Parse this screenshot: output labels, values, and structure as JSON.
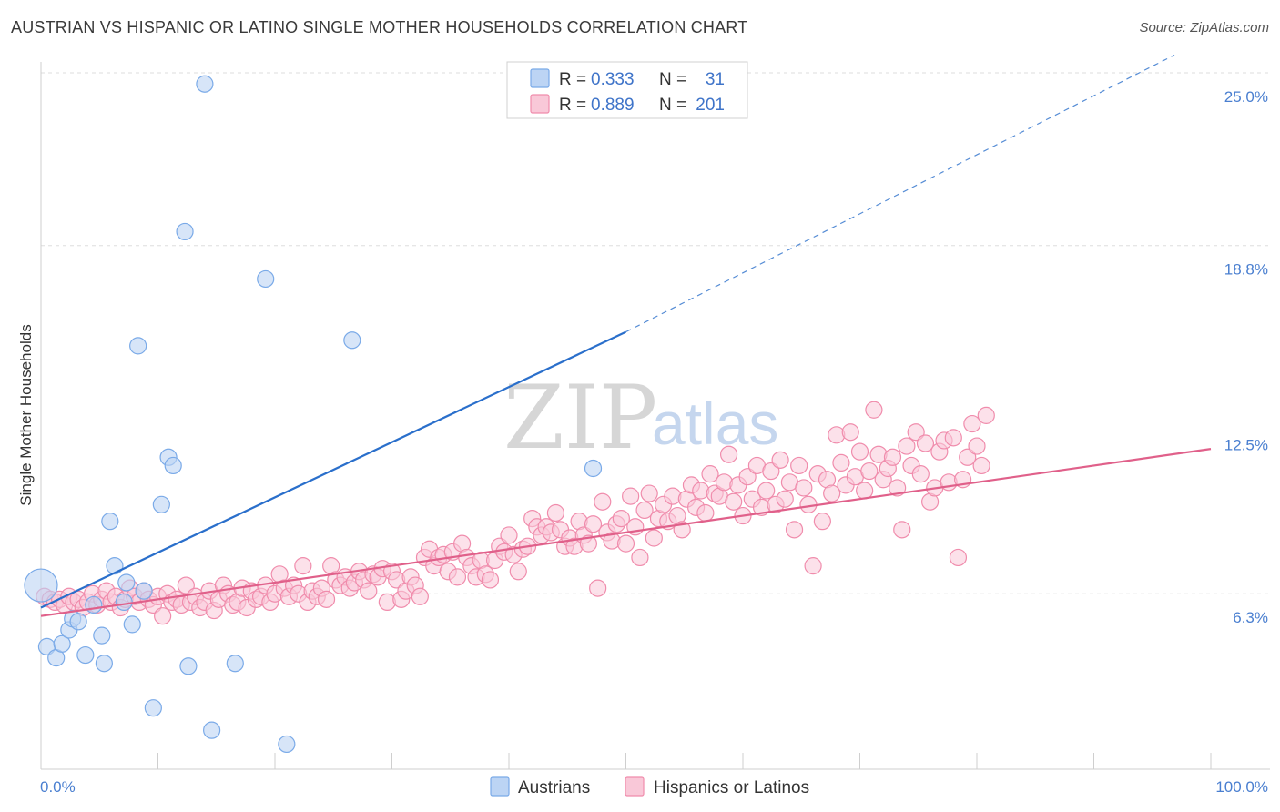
{
  "title": "AUSTRIAN VS HISPANIC OR LATINO SINGLE MOTHER HOUSEHOLDS CORRELATION CHART",
  "source": "Source: ZipAtlas.com",
  "colors": {
    "austrians": "#7aaae8",
    "austrians_fill": "#bcd4f4",
    "austrians_line": "#2a6fcb",
    "hispanics": "#f08cac",
    "hispanics_fill": "#f9c8d8",
    "hispanics_line": "#e0608a",
    "tick_blue": "#4a7fd0",
    "grid": "#dddddd"
  },
  "legend": {
    "rows": [
      {
        "r_label": "R =",
        "r_value": "0.333",
        "n_label": "N =",
        "n_value": "31"
      },
      {
        "r_label": "R =",
        "r_value": "0.889",
        "n_label": "N =",
        "n_value": "201"
      }
    ]
  },
  "bottom_legend": [
    "Austrians",
    "Hispanics or Latinos"
  ],
  "watermark": {
    "zip": "ZIP",
    "atlas": "atlas"
  },
  "chart_data": {
    "type": "scatter",
    "xlabel": "",
    "ylabel": "Single Mother Households",
    "xlim": [
      0,
      100
    ],
    "ylim": [
      0.0,
      25.0
    ],
    "x_tick_labels": [
      "0.0%",
      "100.0%"
    ],
    "y_ticks": [
      6.3,
      12.5,
      18.8,
      25.0
    ],
    "y_tick_labels": [
      "6.3%",
      "12.5%",
      "18.8%",
      "25.0%"
    ],
    "grid": true,
    "series": [
      {
        "name": "Austrians",
        "trend": {
          "x0": 0,
          "y0": 5.8,
          "x1": 50,
          "y1": 15.7,
          "dashed_to_x": 100,
          "dashed_to_y": 25.8
        },
        "points": [
          [
            0,
            6.6
          ],
          [
            0.5,
            4.4
          ],
          [
            1.3,
            4.0
          ],
          [
            1.8,
            4.5
          ],
          [
            2.4,
            5.0
          ],
          [
            2.7,
            5.4
          ],
          [
            3.2,
            5.3
          ],
          [
            3.8,
            4.1
          ],
          [
            4.5,
            5.9
          ],
          [
            5.2,
            4.8
          ],
          [
            5.4,
            3.8
          ],
          [
            5.9,
            8.9
          ],
          [
            6.3,
            7.3
          ],
          [
            7.1,
            6.0
          ],
          [
            7.3,
            6.7
          ],
          [
            7.8,
            5.2
          ],
          [
            8.3,
            15.2
          ],
          [
            8.8,
            6.4
          ],
          [
            9.6,
            2.2
          ],
          [
            10.3,
            9.5
          ],
          [
            10.9,
            11.2
          ],
          [
            11.3,
            10.9
          ],
          [
            12.3,
            19.3
          ],
          [
            12.6,
            3.7
          ],
          [
            14.0,
            24.6
          ],
          [
            14.6,
            1.4
          ],
          [
            16.6,
            3.8
          ],
          [
            19.2,
            17.6
          ],
          [
            21.0,
            0.9
          ],
          [
            26.6,
            15.4
          ],
          [
            47.2,
            10.8
          ]
        ]
      },
      {
        "name": "Hispanics or Latinos",
        "trend": {
          "x0": 0,
          "y0": 5.5,
          "x1": 100,
          "y1": 11.5
        },
        "points": [
          [
            0.3,
            6.2
          ],
          [
            0.8,
            6.1
          ],
          [
            1.2,
            6.0
          ],
          [
            1.6,
            6.1
          ],
          [
            2.0,
            5.9
          ],
          [
            2.4,
            6.2
          ],
          [
            2.8,
            6.0
          ],
          [
            3.2,
            6.1
          ],
          [
            3.6,
            5.8
          ],
          [
            4.0,
            6.0
          ],
          [
            4.4,
            6.3
          ],
          [
            4.8,
            5.9
          ],
          [
            5.2,
            6.1
          ],
          [
            5.6,
            6.4
          ],
          [
            6.0,
            6.0
          ],
          [
            6.4,
            6.2
          ],
          [
            6.8,
            5.8
          ],
          [
            7.2,
            6.1
          ],
          [
            7.6,
            6.5
          ],
          [
            8.0,
            6.2
          ],
          [
            8.4,
            6.0
          ],
          [
            8.8,
            6.4
          ],
          [
            9.2,
            6.1
          ],
          [
            9.6,
            5.9
          ],
          [
            10.0,
            6.2
          ],
          [
            10.4,
            5.5
          ],
          [
            10.8,
            6.3
          ],
          [
            11.2,
            6.0
          ],
          [
            11.6,
            6.1
          ],
          [
            12.0,
            5.9
          ],
          [
            12.4,
            6.6
          ],
          [
            12.8,
            6.0
          ],
          [
            13.2,
            6.2
          ],
          [
            13.6,
            5.8
          ],
          [
            14.0,
            6.0
          ],
          [
            14.4,
            6.4
          ],
          [
            14.8,
            5.7
          ],
          [
            15.2,
            6.1
          ],
          [
            15.6,
            6.6
          ],
          [
            16.0,
            6.3
          ],
          [
            16.4,
            5.9
          ],
          [
            16.8,
            6.0
          ],
          [
            17.2,
            6.5
          ],
          [
            17.6,
            5.8
          ],
          [
            18.0,
            6.4
          ],
          [
            18.4,
            6.1
          ],
          [
            18.8,
            6.2
          ],
          [
            19.2,
            6.6
          ],
          [
            19.6,
            6.0
          ],
          [
            20.0,
            6.3
          ],
          [
            20.4,
            7.0
          ],
          [
            20.8,
            6.5
          ],
          [
            21.2,
            6.2
          ],
          [
            21.6,
            6.6
          ],
          [
            22.0,
            6.3
          ],
          [
            22.4,
            7.3
          ],
          [
            22.8,
            6.0
          ],
          [
            23.2,
            6.4
          ],
          [
            23.6,
            6.2
          ],
          [
            24.0,
            6.5
          ],
          [
            24.4,
            6.1
          ],
          [
            24.8,
            7.3
          ],
          [
            25.2,
            6.8
          ],
          [
            25.6,
            6.6
          ],
          [
            26.0,
            6.9
          ],
          [
            26.4,
            6.5
          ],
          [
            26.8,
            6.7
          ],
          [
            27.2,
            7.1
          ],
          [
            27.6,
            6.8
          ],
          [
            28.0,
            6.4
          ],
          [
            28.4,
            7.0
          ],
          [
            28.8,
            6.9
          ],
          [
            29.2,
            7.2
          ],
          [
            29.6,
            6.0
          ],
          [
            30.0,
            7.1
          ],
          [
            30.4,
            6.8
          ],
          [
            30.8,
            6.1
          ],
          [
            31.2,
            6.4
          ],
          [
            31.6,
            6.9
          ],
          [
            32.0,
            6.6
          ],
          [
            32.4,
            6.2
          ],
          [
            32.8,
            7.6
          ],
          [
            33.2,
            7.9
          ],
          [
            33.6,
            7.3
          ],
          [
            34.0,
            7.6
          ],
          [
            34.4,
            7.7
          ],
          [
            34.8,
            7.1
          ],
          [
            35.2,
            7.8
          ],
          [
            35.6,
            6.9
          ],
          [
            36.0,
            8.1
          ],
          [
            36.4,
            7.6
          ],
          [
            36.8,
            7.3
          ],
          [
            37.2,
            6.9
          ],
          [
            37.6,
            7.5
          ],
          [
            38.0,
            7.0
          ],
          [
            38.4,
            6.8
          ],
          [
            38.8,
            7.5
          ],
          [
            39.2,
            8.0
          ],
          [
            39.6,
            7.8
          ],
          [
            40.0,
            8.4
          ],
          [
            40.4,
            7.7
          ],
          [
            40.8,
            7.1
          ],
          [
            41.2,
            7.9
          ],
          [
            41.6,
            8.0
          ],
          [
            42.0,
            9.0
          ],
          [
            42.4,
            8.7
          ],
          [
            42.8,
            8.4
          ],
          [
            43.2,
            8.7
          ],
          [
            43.6,
            8.5
          ],
          [
            44.0,
            9.2
          ],
          [
            44.4,
            8.6
          ],
          [
            44.8,
            8.0
          ],
          [
            45.2,
            8.3
          ],
          [
            45.6,
            8.0
          ],
          [
            46.0,
            8.9
          ],
          [
            46.4,
            8.4
          ],
          [
            46.8,
            8.1
          ],
          [
            47.2,
            8.8
          ],
          [
            47.6,
            6.5
          ],
          [
            48.0,
            9.6
          ],
          [
            48.4,
            8.5
          ],
          [
            48.8,
            8.2
          ],
          [
            49.2,
            8.8
          ],
          [
            49.6,
            9.0
          ],
          [
            50.0,
            8.1
          ],
          [
            50.4,
            9.8
          ],
          [
            50.8,
            8.7
          ],
          [
            51.2,
            7.6
          ],
          [
            51.6,
            9.3
          ],
          [
            52.0,
            9.9
          ],
          [
            52.4,
            8.3
          ],
          [
            52.8,
            9.0
          ],
          [
            53.2,
            9.5
          ],
          [
            53.6,
            8.9
          ],
          [
            54.0,
            9.8
          ],
          [
            54.4,
            9.1
          ],
          [
            54.8,
            8.6
          ],
          [
            55.2,
            9.7
          ],
          [
            55.6,
            10.2
          ],
          [
            56.0,
            9.4
          ],
          [
            56.4,
            10.0
          ],
          [
            56.8,
            9.2
          ],
          [
            57.2,
            10.6
          ],
          [
            57.6,
            9.9
          ],
          [
            58.0,
            9.8
          ],
          [
            58.4,
            10.3
          ],
          [
            58.8,
            11.3
          ],
          [
            59.2,
            9.6
          ],
          [
            59.6,
            10.2
          ],
          [
            60.0,
            9.1
          ],
          [
            60.4,
            10.5
          ],
          [
            60.8,
            9.7
          ],
          [
            61.2,
            10.9
          ],
          [
            61.6,
            9.4
          ],
          [
            62.0,
            10.0
          ],
          [
            62.4,
            10.7
          ],
          [
            62.8,
            9.5
          ],
          [
            63.2,
            11.1
          ],
          [
            63.6,
            9.7
          ],
          [
            64.0,
            10.3
          ],
          [
            64.4,
            8.6
          ],
          [
            64.8,
            10.9
          ],
          [
            65.2,
            10.1
          ],
          [
            65.6,
            9.5
          ],
          [
            66.0,
            7.3
          ],
          [
            66.4,
            10.6
          ],
          [
            66.8,
            8.9
          ],
          [
            67.2,
            10.4
          ],
          [
            67.6,
            9.9
          ],
          [
            68.0,
            12.0
          ],
          [
            68.4,
            11.0
          ],
          [
            68.8,
            10.2
          ],
          [
            69.2,
            12.1
          ],
          [
            69.6,
            10.5
          ],
          [
            70.0,
            11.4
          ],
          [
            70.4,
            10.0
          ],
          [
            70.8,
            10.7
          ],
          [
            71.2,
            12.9
          ],
          [
            71.6,
            11.3
          ],
          [
            72.0,
            10.4
          ],
          [
            72.4,
            10.8
          ],
          [
            72.8,
            11.2
          ],
          [
            73.2,
            10.1
          ],
          [
            73.6,
            8.6
          ],
          [
            74.0,
            11.6
          ],
          [
            74.4,
            10.9
          ],
          [
            74.8,
            12.1
          ],
          [
            75.2,
            10.6
          ],
          [
            75.6,
            11.7
          ],
          [
            76.0,
            9.6
          ],
          [
            76.4,
            10.1
          ],
          [
            76.8,
            11.4
          ],
          [
            77.2,
            11.8
          ],
          [
            77.6,
            10.3
          ],
          [
            78.0,
            11.9
          ],
          [
            78.4,
            7.6
          ],
          [
            78.8,
            10.4
          ],
          [
            79.2,
            11.2
          ],
          [
            79.6,
            12.4
          ],
          [
            80.0,
            11.6
          ],
          [
            80.4,
            10.9
          ],
          [
            80.8,
            12.7
          ]
        ]
      }
    ]
  }
}
